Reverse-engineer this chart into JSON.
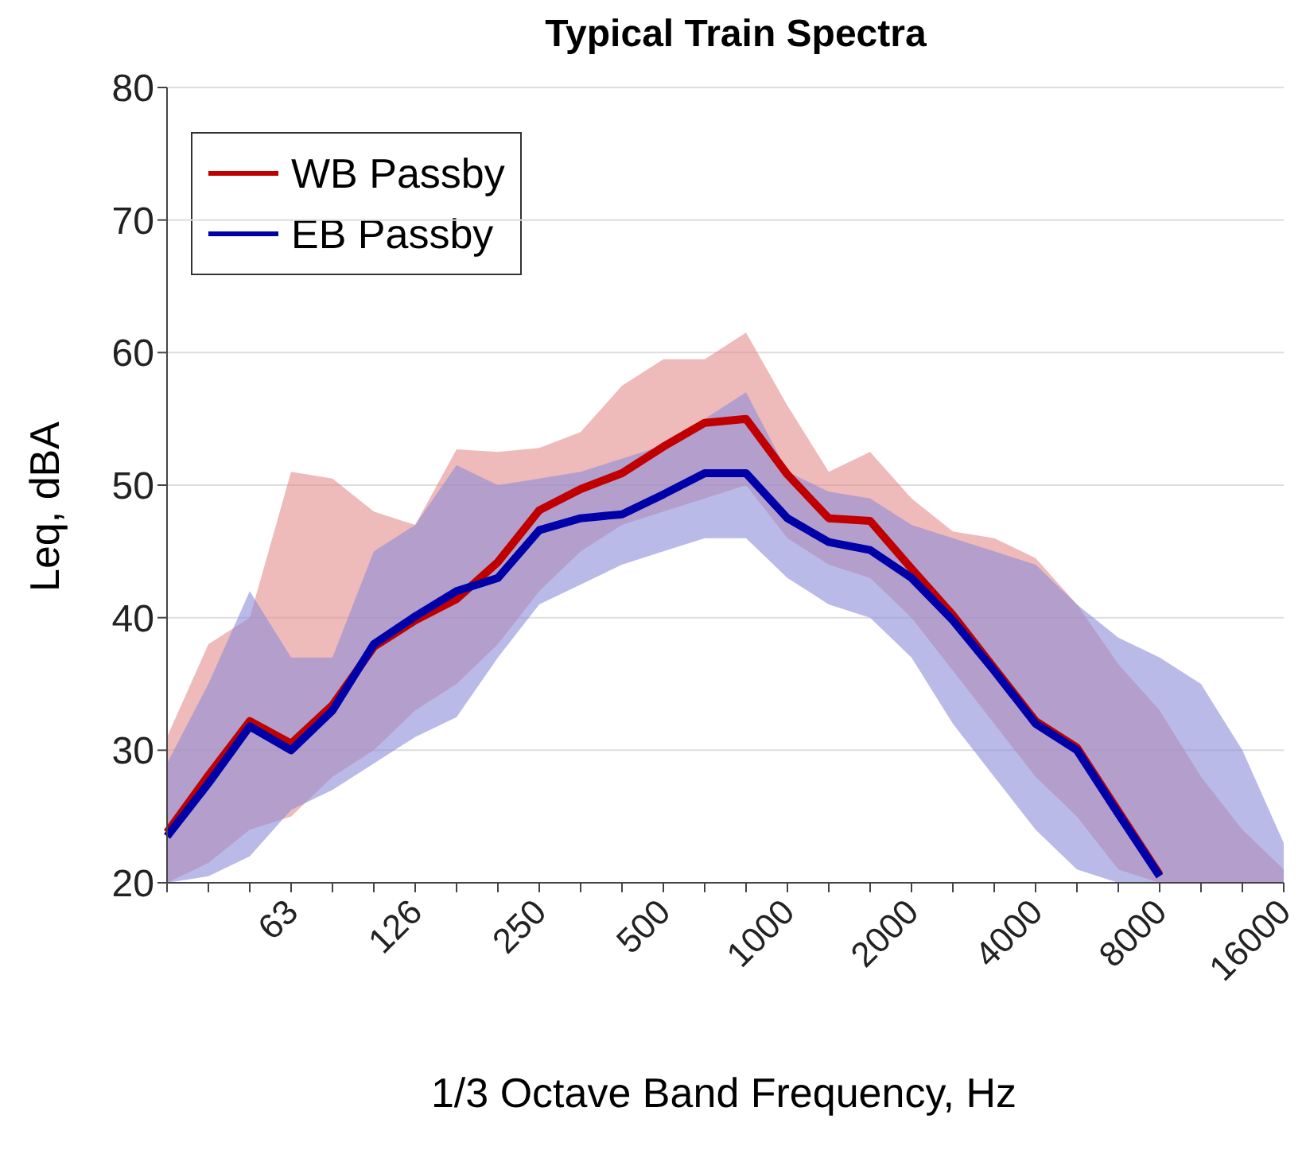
{
  "chart_data": {
    "type": "line",
    "title": "Typical Train Spectra",
    "xlabel": "1/3 Octave Band Frequency, Hz",
    "ylabel": "Leq, dBA",
    "categories": [
      null,
      null,
      null,
      "63",
      null,
      null,
      "126",
      null,
      null,
      "250",
      null,
      null,
      "500",
      null,
      null,
      "1000",
      null,
      null,
      "2000",
      null,
      null,
      "4000",
      null,
      null,
      "8000",
      null,
      null,
      "16000"
    ],
    "series": [
      {
        "name": "WB Passby",
        "color": "#c00000",
        "values": [
          23.8,
          28.1,
          32.2,
          30.5,
          33.4,
          37.8,
          39.8,
          41.4,
          44.2,
          48.1,
          49.7,
          50.9,
          52.9,
          54.7,
          55.0,
          50.8,
          47.5,
          47.3,
          43.7,
          40.2,
          36.2,
          32.2,
          30.2,
          25.4,
          20.6,
          null,
          null,
          null
        ],
        "lower": [
          20,
          21.5,
          24,
          25,
          28,
          30,
          33,
          35,
          38,
          42,
          45,
          47,
          48,
          49,
          50,
          46,
          44,
          43,
          40,
          36,
          32,
          28,
          25,
          21,
          20,
          20,
          20,
          20
        ],
        "upper": [
          31,
          38,
          40,
          51,
          50.5,
          48,
          47,
          52.7,
          52.5,
          52.8,
          54,
          57.5,
          59.5,
          59.5,
          61.5,
          56,
          51,
          52.5,
          49,
          46.5,
          46,
          44.5,
          41,
          36.5,
          33,
          28,
          24,
          21
        ]
      },
      {
        "name": "EB Passby",
        "color": "#0000a8",
        "values": [
          23.5,
          27.5,
          31.8,
          30.0,
          33.0,
          38.0,
          40.1,
          42.0,
          43.0,
          46.6,
          47.5,
          47.8,
          49.3,
          50.9,
          50.9,
          47.5,
          45.7,
          45.1,
          43.0,
          39.8,
          36.0,
          32.0,
          30.0,
          25.2,
          20.5,
          null,
          null,
          null
        ],
        "lower": [
          20,
          20.5,
          22,
          25.5,
          27,
          29,
          31,
          32.5,
          37,
          41,
          42.5,
          44,
          45,
          46,
          46,
          43,
          41,
          40,
          37,
          32,
          28,
          24,
          21,
          20,
          20,
          20,
          20,
          20
        ],
        "upper": [
          29,
          35,
          42,
          37,
          37,
          45,
          47,
          51.5,
          50,
          50.5,
          51,
          52,
          53,
          55,
          57,
          51,
          49.5,
          49,
          47,
          46,
          45,
          44,
          41,
          38.5,
          37,
          35,
          30,
          23
        ]
      }
    ],
    "ylim": [
      20,
      80
    ],
    "yticks": [
      20,
      30,
      40,
      50,
      60,
      70,
      80
    ],
    "grid": "y",
    "legend": "top left"
  }
}
